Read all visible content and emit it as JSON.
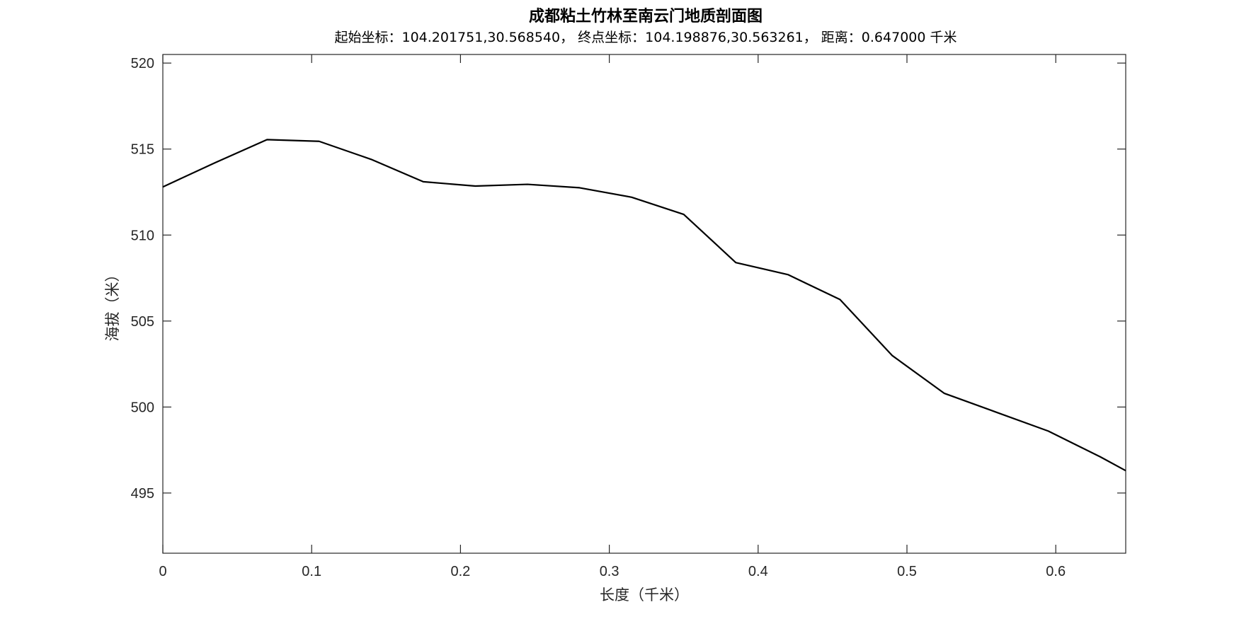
{
  "chart_data": {
    "type": "line",
    "title": "成都粘土竹林至南云门地质剖面图",
    "subtitle": "起始坐标：104.201751,30.568540，  终点坐标：104.198876,30.563261，  距离：0.647000 千米",
    "xlabel": "长度（千米）",
    "ylabel": "海拔（米）",
    "xlim": [
      0,
      0.647
    ],
    "ylim": [
      491.5,
      520.5
    ],
    "xticks": [
      0,
      0.1,
      0.2,
      0.3,
      0.4,
      0.5,
      0.6
    ],
    "xtick_labels": [
      "0",
      "0.1",
      "0.2",
      "0.3",
      "0.4",
      "0.5",
      "0.6"
    ],
    "yticks": [
      495,
      500,
      505,
      510,
      515,
      520
    ],
    "ytick_labels": [
      "495",
      "500",
      "505",
      "510",
      "515",
      "520"
    ],
    "grid": false,
    "series": [
      {
        "color": "#000000",
        "x": [
          0,
          0.035,
          0.07,
          0.105,
          0.14,
          0.175,
          0.21,
          0.245,
          0.28,
          0.315,
          0.35,
          0.385,
          0.42,
          0.455,
          0.49,
          0.525,
          0.56,
          0.595,
          0.63,
          0.647
        ],
        "y": [
          512.8,
          514.2,
          515.55,
          515.45,
          514.4,
          513.1,
          512.85,
          512.95,
          512.75,
          512.2,
          511.2,
          508.4,
          507.7,
          506.25,
          503.0,
          500.8,
          499.7,
          498.6,
          497.1,
          496.3
        ]
      }
    ]
  }
}
